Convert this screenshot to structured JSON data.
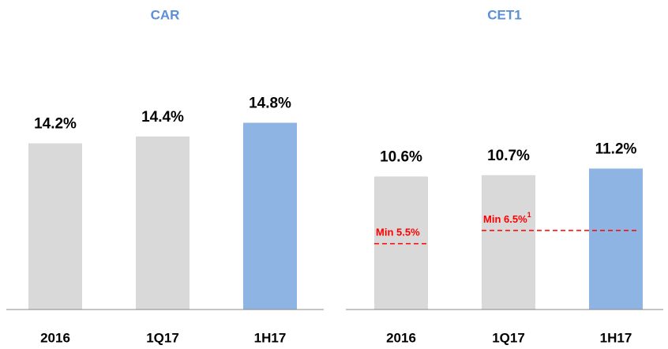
{
  "chart_data": [
    {
      "type": "bar",
      "title": "CAR",
      "categories": [
        "2016",
        "1Q17",
        "1H17"
      ],
      "values": [
        14.2,
        14.4,
        14.8
      ],
      "value_labels": [
        "14.2%",
        "14.4%",
        "14.8%"
      ],
      "colors": [
        "#d9d9d9",
        "#d9d9d9",
        "#8db4e2"
      ],
      "ylim": [
        9.35,
        17
      ]
    },
    {
      "type": "bar",
      "title": "CET1",
      "categories": [
        "2016",
        "1Q17",
        "1H17"
      ],
      "values": [
        10.6,
        10.7,
        11.2
      ],
      "value_labels": [
        "10.6%",
        "10.7%",
        "11.2%"
      ],
      "colors": [
        "#d9d9d9",
        "#d9d9d9",
        "#8db4e2"
      ],
      "ylim": [
        0.5,
        20.4
      ],
      "thresholds": [
        {
          "label": "Min 5.5%",
          "value": 5.5,
          "span": [
            0,
            0
          ]
        },
        {
          "label": "Min 6.5%",
          "footnote": "1",
          "value": 6.5,
          "span": [
            1,
            2
          ]
        }
      ]
    }
  ]
}
